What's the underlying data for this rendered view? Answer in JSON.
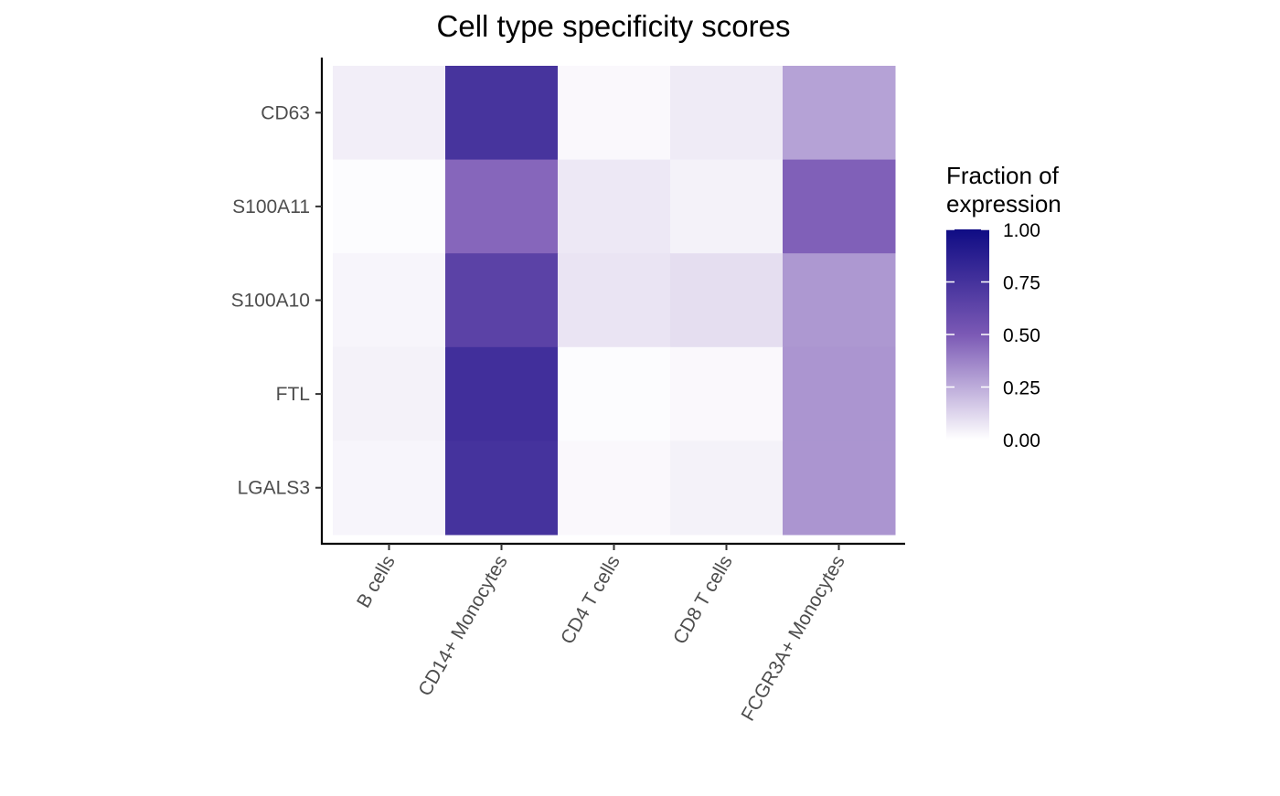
{
  "chart_data": {
    "type": "heatmap",
    "title": "Cell type specificity scores",
    "xlabel": "",
    "ylabel": "",
    "x_categories": [
      "B cells",
      "CD14+ Monocytes",
      "CD4 T cells",
      "CD8 T cells",
      "FCGR3A+ Monocytes"
    ],
    "y_categories": [
      "CD63",
      "S100A11",
      "S100A10",
      "FTL",
      "LGALS3"
    ],
    "values": [
      [
        0.05,
        0.74,
        0.02,
        0.06,
        0.28
      ],
      [
        0.01,
        0.46,
        0.07,
        0.04,
        0.48
      ],
      [
        0.03,
        0.65,
        0.08,
        0.1,
        0.31
      ],
      [
        0.04,
        0.77,
        0.01,
        0.02,
        0.32
      ],
      [
        0.03,
        0.75,
        0.02,
        0.04,
        0.32
      ]
    ],
    "legend": {
      "title": "Fraction of expression",
      "title_lines": [
        "Fraction of",
        "expression"
      ],
      "position": "right",
      "range": [
        0.0,
        1.0
      ],
      "ticks": [
        1.0,
        0.75,
        0.5,
        0.25,
        0.0
      ],
      "tick_labels": [
        "1.00",
        "0.75",
        "0.50",
        "0.25",
        "0.00"
      ],
      "color_low": "#ffffff",
      "color_high": "#0f0c84",
      "color_mid": "#7b59b5"
    },
    "grid": false
  }
}
